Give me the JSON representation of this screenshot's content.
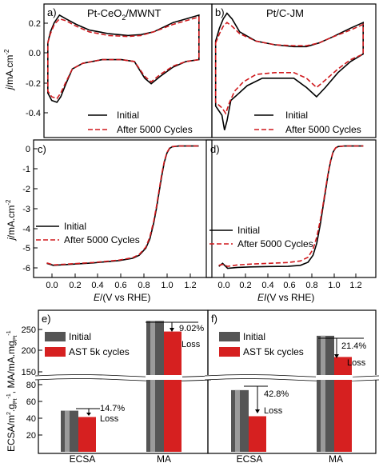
{
  "chart_data": [
    {
      "panel": "a)",
      "title": "Pt-CeO2/MWNT",
      "type": "line",
      "xlim": [
        0,
        1.3
      ],
      "ylim": [
        -0.47,
        0.25
      ],
      "yticks": [
        -0.4,
        -0.2,
        0.0,
        0.2
      ],
      "ytick_labels": [
        "-0.4",
        "-0.2",
        "0.0",
        "0.2"
      ],
      "legend_position": "bottom-right",
      "series": [
        {
          "name": "Initial",
          "color": "#000000",
          "dash": "solid",
          "upper": [
            [
              0.03,
              0.04
            ],
            [
              0.05,
              0.1
            ],
            [
              0.08,
              0.15
            ],
            [
              0.12,
              0.19
            ],
            [
              0.17,
              0.17
            ],
            [
              0.25,
              0.14
            ],
            [
              0.35,
              0.11
            ],
            [
              0.5,
              0.09
            ],
            [
              0.65,
              0.08
            ],
            [
              0.75,
              0.085
            ],
            [
              0.85,
              0.1
            ],
            [
              1.0,
              0.15
            ],
            [
              1.1,
              0.17
            ],
            [
              1.2,
              0.19
            ]
          ],
          "lower": [
            [
              0.03,
              -0.23
            ],
            [
              0.06,
              -0.27
            ],
            [
              0.1,
              -0.28
            ],
            [
              0.13,
              -0.25
            ],
            [
              0.17,
              -0.18
            ],
            [
              0.22,
              -0.1
            ],
            [
              0.3,
              -0.07
            ],
            [
              0.45,
              -0.05
            ],
            [
              0.6,
              -0.05
            ],
            [
              0.7,
              -0.06
            ],
            [
              0.78,
              -0.15
            ],
            [
              0.83,
              -0.18
            ],
            [
              0.9,
              -0.14
            ],
            [
              1.0,
              -0.09
            ],
            [
              1.1,
              -0.06
            ],
            [
              1.2,
              -0.05
            ]
          ]
        },
        {
          "name": "After 5000 Cycles",
          "color": "#d0191d",
          "dash": "dashed",
          "upper": [
            [
              0.03,
              0.04
            ],
            [
              0.05,
              0.09
            ],
            [
              0.08,
              0.14
            ],
            [
              0.12,
              0.17
            ],
            [
              0.17,
              0.16
            ],
            [
              0.25,
              0.13
            ],
            [
              0.35,
              0.1
            ],
            [
              0.5,
              0.08
            ],
            [
              0.65,
              0.075
            ],
            [
              0.75,
              0.08
            ],
            [
              0.85,
              0.1
            ],
            [
              1.0,
              0.14
            ],
            [
              1.1,
              0.16
            ],
            [
              1.2,
              0.18
            ]
          ],
          "lower": [
            [
              0.03,
              -0.22
            ],
            [
              0.06,
              -0.25
            ],
            [
              0.1,
              -0.26
            ],
            [
              0.13,
              -0.23
            ],
            [
              0.17,
              -0.17
            ],
            [
              0.22,
              -0.1
            ],
            [
              0.3,
              -0.07
            ],
            [
              0.45,
              -0.05
            ],
            [
              0.6,
              -0.05
            ],
            [
              0.7,
              -0.06
            ],
            [
              0.78,
              -0.14
            ],
            [
              0.83,
              -0.17
            ],
            [
              0.9,
              -0.13
            ],
            [
              1.0,
              -0.085
            ],
            [
              1.1,
              -0.06
            ],
            [
              1.2,
              -0.05
            ]
          ]
        }
      ]
    },
    {
      "panel": "b)",
      "title": "Pt/C-JM",
      "type": "line",
      "xlim": [
        0,
        1.3
      ],
      "ylim": [
        -0.47,
        0.25
      ],
      "legend_position": "bottom-right",
      "series": [
        {
          "name": "Initial",
          "color": "#000000",
          "dash": "solid",
          "upper": [
            [
              0.03,
              0.05
            ],
            [
              0.06,
              0.12
            ],
            [
              0.09,
              0.17
            ],
            [
              0.12,
              0.2
            ],
            [
              0.16,
              0.17
            ],
            [
              0.22,
              0.1
            ],
            [
              0.35,
              0.05
            ],
            [
              0.5,
              0.03
            ],
            [
              0.65,
              0.02
            ],
            [
              0.75,
              0.02
            ],
            [
              0.85,
              0.04
            ],
            [
              0.95,
              0.07
            ],
            [
              1.1,
              0.12
            ],
            [
              1.2,
              0.15
            ]
          ],
          "lower": [
            [
              0.03,
              -0.3
            ],
            [
              0.08,
              -0.35
            ],
            [
              0.1,
              -0.43
            ],
            [
              0.12,
              -0.38
            ],
            [
              0.15,
              -0.27
            ],
            [
              0.2,
              -0.24
            ],
            [
              0.28,
              -0.19
            ],
            [
              0.4,
              -0.15
            ],
            [
              0.55,
              -0.15
            ],
            [
              0.65,
              -0.15
            ],
            [
              0.75,
              -0.2
            ],
            [
              0.83,
              -0.25
            ],
            [
              0.9,
              -0.2
            ],
            [
              1.0,
              -0.12
            ],
            [
              1.1,
              -0.06
            ],
            [
              1.2,
              -0.02
            ]
          ]
        },
        {
          "name": "After 5000 Cycles",
          "color": "#d0191d",
          "dash": "dashed",
          "upper": [
            [
              0.03,
              0.04
            ],
            [
              0.06,
              0.09
            ],
            [
              0.09,
              0.13
            ],
            [
              0.12,
              0.15
            ],
            [
              0.16,
              0.13
            ],
            [
              0.22,
              0.09
            ],
            [
              0.35,
              0.05
            ],
            [
              0.5,
              0.03
            ],
            [
              0.65,
              0.025
            ],
            [
              0.75,
              0.025
            ],
            [
              0.85,
              0.04
            ],
            [
              0.95,
              0.07
            ],
            [
              1.1,
              0.11
            ],
            [
              1.2,
              0.14
            ]
          ],
          "lower": [
            [
              0.03,
              -0.28
            ],
            [
              0.08,
              -0.31
            ],
            [
              0.11,
              -0.34
            ],
            [
              0.14,
              -0.28
            ],
            [
              0.18,
              -0.22
            ],
            [
              0.25,
              -0.17
            ],
            [
              0.35,
              -0.13
            ],
            [
              0.5,
              -0.12
            ],
            [
              0.65,
              -0.12
            ],
            [
              0.75,
              -0.15
            ],
            [
              0.83,
              -0.2
            ],
            [
              0.9,
              -0.16
            ],
            [
              1.0,
              -0.1
            ],
            [
              1.1,
              -0.05
            ],
            [
              1.2,
              -0.02
            ]
          ]
        }
      ]
    },
    {
      "panel": "c)",
      "type": "line",
      "xlim": [
        -0.05,
        1.3
      ],
      "ylim": [
        -6.5,
        0.3
      ],
      "yticks": [
        0,
        -1,
        -2,
        -3,
        -4,
        -5,
        -6
      ],
      "ytick_labels": [
        "0",
        "-1",
        "-2",
        "-3",
        "-4",
        "-5",
        "-6"
      ],
      "xticks": [
        0.0,
        0.2,
        0.4,
        0.6,
        0.8,
        1.0,
        1.2
      ],
      "xtick_labels": [
        "0.0",
        "0.2",
        "0.4",
        "0.6",
        "0.8",
        "1.0",
        "1.2"
      ],
      "legend_position": "left",
      "series": [
        {
          "name": "Initial",
          "color": "#000000",
          "dash": "solid",
          "points": [
            [
              0.05,
              -5.8
            ],
            [
              0.1,
              -5.9
            ],
            [
              0.2,
              -5.86
            ],
            [
              0.3,
              -5.82
            ],
            [
              0.4,
              -5.78
            ],
            [
              0.5,
              -5.72
            ],
            [
              0.6,
              -5.66
            ],
            [
              0.7,
              -5.55
            ],
            [
              0.75,
              -5.4
            ],
            [
              0.8,
              -5.05
            ],
            [
              0.83,
              -4.6
            ],
            [
              0.86,
              -3.8
            ],
            [
              0.88,
              -3.1
            ],
            [
              0.9,
              -2.3
            ],
            [
              0.92,
              -1.5
            ],
            [
              0.94,
              -0.8
            ],
            [
              0.96,
              -0.35
            ],
            [
              0.98,
              -0.12
            ],
            [
              1.0,
              -0.04
            ],
            [
              1.05,
              0.0
            ],
            [
              1.2,
              0.0
            ]
          ]
        },
        {
          "name": "After 5000 Cycles",
          "color": "#d0191d",
          "dash": "dashed",
          "points": [
            [
              0.05,
              -5.78
            ],
            [
              0.1,
              -5.88
            ],
            [
              0.2,
              -5.84
            ],
            [
              0.3,
              -5.8
            ],
            [
              0.4,
              -5.76
            ],
            [
              0.5,
              -5.7
            ],
            [
              0.6,
              -5.64
            ],
            [
              0.7,
              -5.52
            ],
            [
              0.75,
              -5.36
            ],
            [
              0.8,
              -5.0
            ],
            [
              0.83,
              -4.5
            ],
            [
              0.86,
              -3.7
            ],
            [
              0.88,
              -3.0
            ],
            [
              0.9,
              -2.2
            ],
            [
              0.92,
              -1.4
            ],
            [
              0.94,
              -0.75
            ],
            [
              0.96,
              -0.32
            ],
            [
              0.98,
              -0.1
            ],
            [
              1.0,
              -0.03
            ],
            [
              1.05,
              0.0
            ],
            [
              1.2,
              0.0
            ]
          ]
        }
      ]
    },
    {
      "panel": "d)",
      "type": "line",
      "xlim": [
        -0.05,
        1.3
      ],
      "ylim": [
        -6.5,
        0.3
      ],
      "xticks": [
        0.0,
        0.2,
        0.4,
        0.6,
        0.8,
        1.0,
        1.2
      ],
      "xtick_labels": [
        "0.0",
        "0.2",
        "0.4",
        "0.6",
        "0.8",
        "1.0",
        "1.2"
      ],
      "legend_position": "left",
      "series": [
        {
          "name": "Initial",
          "color": "#000000",
          "dash": "solid",
          "points": [
            [
              0.05,
              -5.95
            ],
            [
              0.08,
              -5.8
            ],
            [
              0.12,
              -6.05
            ],
            [
              0.2,
              -6.0
            ],
            [
              0.3,
              -5.98
            ],
            [
              0.45,
              -5.96
            ],
            [
              0.6,
              -5.95
            ],
            [
              0.7,
              -5.9
            ],
            [
              0.76,
              -5.75
            ],
            [
              0.8,
              -5.4
            ],
            [
              0.83,
              -4.8
            ],
            [
              0.86,
              -3.8
            ],
            [
              0.88,
              -3.0
            ],
            [
              0.9,
              -2.2
            ],
            [
              0.92,
              -1.4
            ],
            [
              0.94,
              -0.75
            ],
            [
              0.96,
              -0.3
            ],
            [
              0.98,
              -0.1
            ],
            [
              1.0,
              -0.03
            ],
            [
              1.05,
              0.0
            ],
            [
              1.2,
              0.0
            ]
          ]
        },
        {
          "name": "After 5000 Cycles",
          "color": "#d0191d",
          "dash": "dashed",
          "points": [
            [
              0.05,
              -5.9
            ],
            [
              0.08,
              -5.85
            ],
            [
              0.12,
              -5.95
            ],
            [
              0.2,
              -5.88
            ],
            [
              0.3,
              -5.84
            ],
            [
              0.45,
              -5.8
            ],
            [
              0.6,
              -5.76
            ],
            [
              0.7,
              -5.68
            ],
            [
              0.76,
              -5.5
            ],
            [
              0.8,
              -5.1
            ],
            [
              0.83,
              -4.5
            ],
            [
              0.86,
              -3.6
            ],
            [
              0.88,
              -2.9
            ],
            [
              0.9,
              -2.1
            ],
            [
              0.92,
              -1.35
            ],
            [
              0.94,
              -0.72
            ],
            [
              0.96,
              -0.28
            ],
            [
              0.98,
              -0.09
            ],
            [
              1.0,
              -0.03
            ],
            [
              1.05,
              0.0
            ],
            [
              1.2,
              0.0
            ]
          ]
        }
      ]
    },
    {
      "panel": "e)",
      "type": "bar",
      "categories": [
        "ECSA",
        "MA"
      ],
      "broken_axis": {
        "lower_range": [
          0,
          90
        ],
        "upper_range": [
          150,
          280
        ]
      },
      "lower_yticks": [
        0,
        20,
        40,
        60,
        80
      ],
      "upper_yticks": [
        150,
        200,
        250
      ],
      "legend_position": "top-left",
      "series": [
        {
          "name": "Initial",
          "color": "#555555",
          "values": [
            52,
            270
          ]
        },
        {
          "name": "AST 5k cycles",
          "color": "#d62020",
          "values": [
            44,
            245
          ]
        }
      ],
      "annotations": [
        {
          "category": "ECSA",
          "text": [
            "14.7%",
            "Loss"
          ]
        },
        {
          "category": "MA",
          "text": [
            "9.02%",
            "Loss"
          ]
        }
      ]
    },
    {
      "panel": "f)",
      "type": "bar",
      "categories": [
        "ECSA",
        "MA"
      ],
      "broken_axis": {
        "lower_range": [
          0,
          90
        ],
        "upper_range": [
          150,
          280
        ]
      },
      "legend_position": "top-left",
      "series": [
        {
          "name": "Initial",
          "color": "#555555",
          "values": [
            78,
            235
          ]
        },
        {
          "name": "AST 5k cycles",
          "color": "#d62020",
          "values": [
            45,
            185
          ]
        }
      ],
      "annotations": [
        {
          "category": "ECSA",
          "text": [
            "42.8%",
            "Loss"
          ]
        },
        {
          "category": "MA",
          "text": [
            "21.4%",
            "Loss"
          ]
        }
      ]
    }
  ],
  "labels": {
    "a_panel": "a)",
    "a_title_main": "Pt-CeO",
    "a_title_sub": "2",
    "a_title_tail": "/MWNT",
    "b_panel": "b)",
    "b_title": "Pt/C-JM",
    "c_panel": "c)",
    "d_panel": "d)",
    "e_panel": "e)",
    "f_panel": "f)",
    "cv_ylabel_j": "j",
    "cv_ylabel_units": "/mA.cm",
    "cv_ylabel_exp": "-2",
    "lsv_ylabel_j": "j",
    "lsv_ylabel_units": "/mA.cm",
    "lsv_ylabel_exp": "-2",
    "c_xlabel_E": "E",
    "c_xlabel_units": "/(V vs RHE)",
    "d_xlabel_E": "EI",
    "d_xlabel_units": "(V vs RHE)",
    "bar_ylabel_1": "ECSA/m",
    "bar_ylabel_2": "2",
    "bar_ylabel_3": ".g",
    "bar_ylabel_4": "Pt",
    "bar_ylabel_5": "-1",
    "bar_ylabel_6": ", MA/mA.mg",
    "bar_ylabel_7": "Pt",
    "bar_ylabel_8": "-1",
    "leg_initial": "Initial",
    "leg_after": "After 5000 Cycles",
    "leg_ast": "AST 5k cycles",
    "cat_ecsa": "ECSA",
    "cat_ma": "MA",
    "loss": "Loss",
    "e_ecsa_pct": "14.7%",
    "e_ma_pct": "9.02%",
    "f_ecsa_pct": "42.8%",
    "f_ma_pct": "21.4%"
  }
}
